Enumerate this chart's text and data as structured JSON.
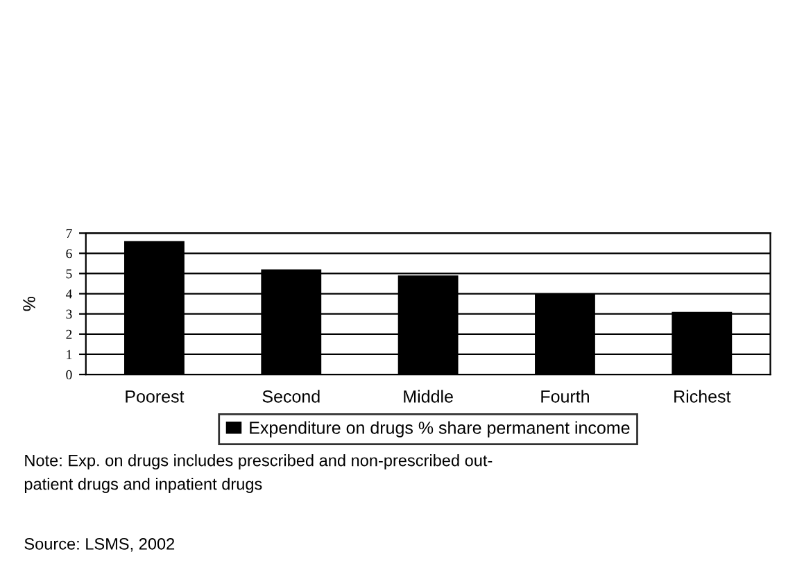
{
  "chart_data": {
    "type": "bar",
    "ylabel": "%",
    "categories": [
      "Poorest",
      "Second",
      "Middle",
      "Fourth",
      "Richest"
    ],
    "series": [
      {
        "name": "Expenditure on drugs % share permanent income",
        "color": "#000000",
        "values": [
          6.6,
          5.2,
          4.9,
          4.0,
          3.1
        ]
      }
    ],
    "ylim": [
      0,
      7
    ],
    "yticks": [
      0,
      1,
      2,
      3,
      4,
      5,
      6,
      7
    ],
    "grid": "y",
    "legend": "bottom",
    "annotations": [
      "Note: Exp. on drugs includes prescribed and non-prescribed out-\npatient drugs and inpatient drugs",
      "Source: LSMS, 2002"
    ]
  }
}
